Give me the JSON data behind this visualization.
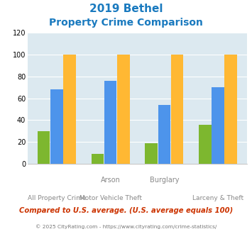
{
  "title_line1": "2019 Bethel",
  "title_line2": "Property Crime Comparison",
  "title_color": "#1a7abf",
  "bethel": [
    30,
    9,
    19,
    36
  ],
  "connecticut": [
    68,
    76,
    54,
    70
  ],
  "national": [
    100,
    100,
    100,
    100
  ],
  "bethel_color": "#7db72f",
  "connecticut_color": "#4d94eb",
  "national_color": "#ffb833",
  "ylim": [
    0,
    120
  ],
  "yticks": [
    0,
    20,
    40,
    60,
    80,
    100,
    120
  ],
  "bg_color": "#dce9f0",
  "footnote": "Compared to U.S. average. (U.S. average equals 100)",
  "footnote_color": "#cc3300",
  "copyright": "© 2025 CityRating.com - https://www.cityrating.com/crime-statistics/",
  "copyright_color": "#777777",
  "bar_width": 0.23,
  "bar_gap": 0.01
}
